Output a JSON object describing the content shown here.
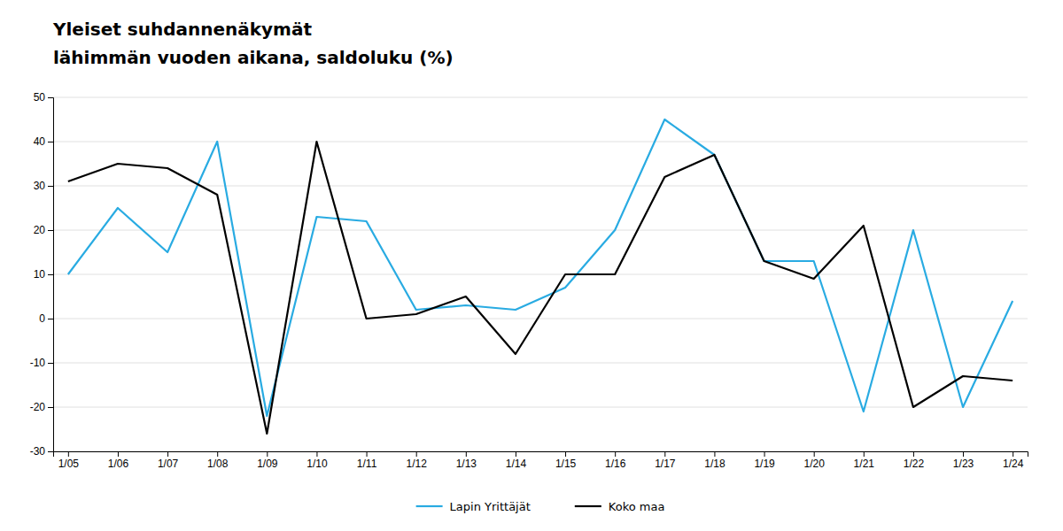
{
  "chart_data": {
    "type": "line",
    "title": "Yleiset suhdannenäkymät",
    "subtitle": "lähimmän vuoden aikana, saldoluku (%)",
    "categories": [
      "1/05",
      "1/06",
      "1/07",
      "1/08",
      "1/09",
      "1/10",
      "1/11",
      "1/12",
      "1/13",
      "1/14",
      "1/15",
      "1/16",
      "1/17",
      "1/18",
      "1/19",
      "1/20",
      "1/21",
      "1/22",
      "1/23",
      "1/24"
    ],
    "series": [
      {
        "name": "Lapin Yrittäjät",
        "color": "#29ABE2",
        "values": [
          10,
          25,
          15,
          40,
          -22,
          23,
          22,
          2,
          3,
          2,
          7,
          20,
          45,
          37,
          13,
          13,
          -21,
          20,
          -20,
          4
        ]
      },
      {
        "name": "Koko maa",
        "color": "#000000",
        "values": [
          31,
          35,
          34,
          28,
          -26,
          40,
          0,
          1,
          5,
          -8,
          10,
          10,
          32,
          37,
          13,
          9,
          21,
          -20,
          -13,
          -14
        ]
      }
    ],
    "ylim": [
      -30,
      50
    ],
    "yticks": [
      -30,
      -20,
      -10,
      0,
      10,
      20,
      30,
      40,
      50
    ],
    "grid": true,
    "legend": "bottom"
  }
}
